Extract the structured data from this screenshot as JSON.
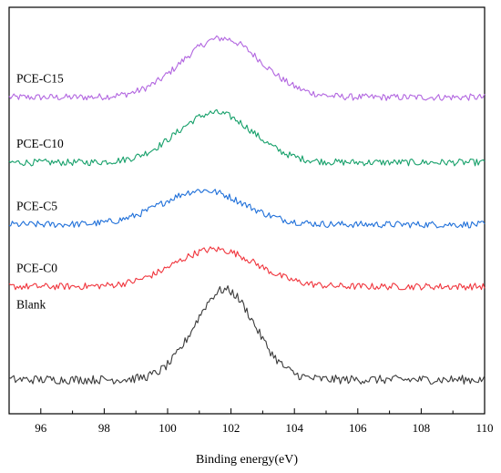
{
  "chart_data": {
    "type": "line",
    "title": "",
    "xlabel": "Binding energy(eV)",
    "ylabel": "",
    "xlim": [
      95,
      110
    ],
    "x_ticks": [
      96,
      98,
      100,
      102,
      104,
      106,
      108,
      110
    ],
    "y_ticks_shown": false,
    "grid": false,
    "legend": "none",
    "noise": 0.055,
    "series": [
      {
        "name": "PCE-C15",
        "color": "#b266e0",
        "offset": 4.55,
        "peak_center": 101.7,
        "peak_width": 1.25,
        "peak_height": 0.95,
        "baseline": 0.0
      },
      {
        "name": "PCE-C10",
        "color": "#16a06a",
        "offset": 3.5,
        "peak_center": 101.5,
        "peak_width": 1.2,
        "peak_height": 0.8,
        "baseline": 0.0
      },
      {
        "name": "PCE-C5",
        "color": "#1e6fd9",
        "offset": 2.5,
        "peak_center": 101.1,
        "peak_width": 1.3,
        "peak_height": 0.55,
        "baseline": 0.0
      },
      {
        "name": "PCE-C0",
        "color": "#f0343c",
        "offset": 1.5,
        "peak_center": 101.5,
        "peak_width": 1.3,
        "peak_height": 0.6,
        "baseline": 0.0
      },
      {
        "name": "Blank",
        "color": "#3a3a3a",
        "offset": 0.0,
        "peak_center": 101.8,
        "peak_width": 0.95,
        "peak_height": 1.45,
        "baseline": 0.0
      }
    ]
  }
}
